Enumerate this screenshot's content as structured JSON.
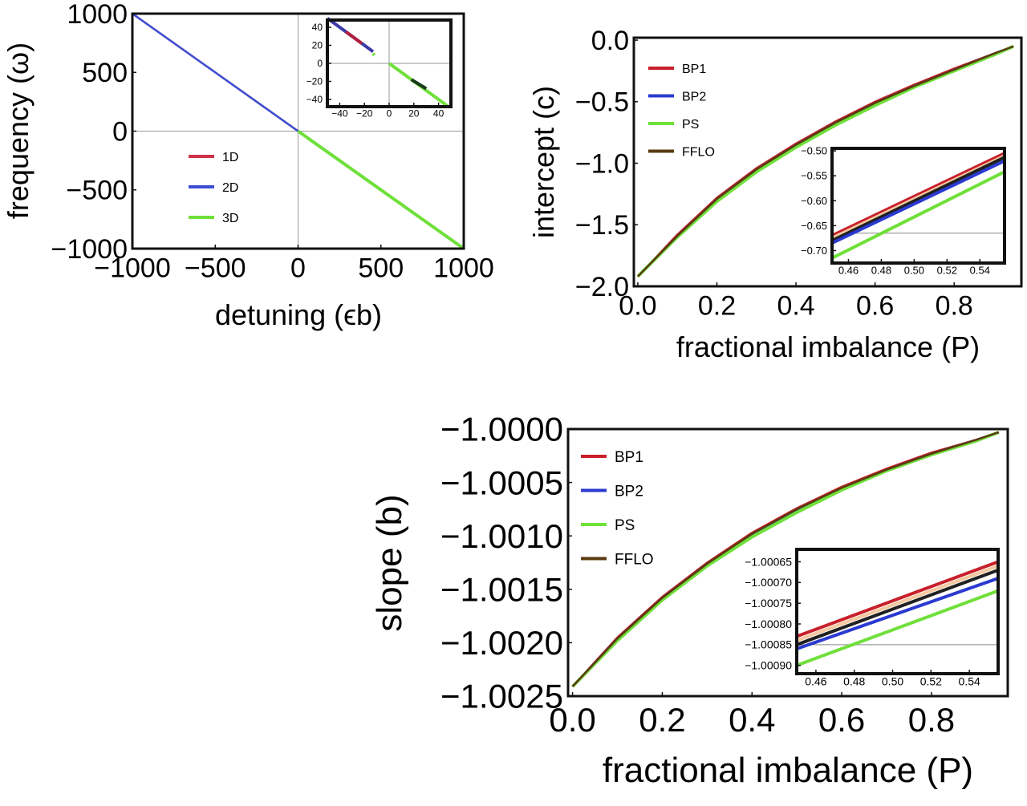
{
  "chart_data": [
    {
      "type": "line",
      "panel": "a",
      "xlabel": "detuning (ϵb)",
      "ylabel": "frequency (ω)",
      "xlim": [
        -1000,
        1000
      ],
      "ylim": [
        -1000,
        1000
      ],
      "xticks": [
        -1000,
        -500,
        0,
        500,
        1000
      ],
      "xticklabels": [
        "−1000",
        "−500",
        "0",
        "500",
        "1000"
      ],
      "yticks": [
        -1000,
        -500,
        0,
        500,
        1000
      ],
      "yticklabels": [
        "−1000",
        "−500",
        "0",
        "500",
        "1000"
      ],
      "legend_placement": "center-left",
      "zero_lines": true,
      "series": [
        {
          "name": "1D",
          "color": "#d0314a",
          "x": [
            -1000,
            0
          ],
          "y": [
            1000,
            0
          ]
        },
        {
          "name": "2D",
          "color": "#3a4fd6",
          "x": [
            -1000,
            0
          ],
          "y": [
            1000,
            0
          ]
        },
        {
          "name": "3D",
          "color": "#6fe03a",
          "x": [
            0,
            1000
          ],
          "y": [
            0,
            -1000
          ]
        }
      ],
      "inset": {
        "xlim": [
          -50,
          50
        ],
        "ylim": [
          -48,
          48
        ],
        "xticks": [
          -40,
          -20,
          0,
          20,
          40
        ],
        "xticklabels": [
          "−40",
          "−20",
          "0",
          "20",
          "40"
        ],
        "yticks": [
          -40,
          -20,
          0,
          20,
          40
        ],
        "yticklabels": [
          "−40",
          "−20",
          "0",
          "20",
          "40"
        ],
        "series": [
          {
            "color": "#3a3aa8",
            "x": [
              -50,
              -13
            ],
            "y": [
              50,
              13
            ]
          },
          {
            "color": "#b02040",
            "x": [
              -35,
              -22
            ],
            "y": [
              35,
              22
            ]
          },
          {
            "color": "#6fe03a",
            "x": [
              -13,
              -12
            ],
            "y": [
              11,
              9
            ]
          },
          {
            "color": "#6fe03a",
            "x": [
              0,
              48
            ],
            "y": [
              0,
              -48
            ]
          },
          {
            "color": "#1a3a1a",
            "x": [
              18,
              30
            ],
            "y": [
              -18,
              -28
            ]
          }
        ]
      }
    },
    {
      "type": "line",
      "panel": "b",
      "xlabel": "fractional imbalance (P)",
      "ylabel": "intercept (c)",
      "xlim": [
        -0.01,
        0.97
      ],
      "ylim": [
        -2.0,
        0.02
      ],
      "xticks": [
        0,
        0.2,
        0.4,
        0.6,
        0.8
      ],
      "xticklabels": [
        "0.0",
        "0.2",
        "0.4",
        "0.6",
        "0.8"
      ],
      "yticks": [
        -2,
        -1.5,
        -1,
        -0.5,
        0
      ],
      "yticklabels": [
        "−2.0",
        "−1.5",
        "−1.0",
        "−0.5",
        "0.0"
      ],
      "legend_placement": "top-left",
      "x": [
        0,
        0.1,
        0.2,
        0.3,
        0.4,
        0.5,
        0.6,
        0.7,
        0.8,
        0.9,
        0.95
      ],
      "series": [
        {
          "name": "BP1",
          "color": "#c8202a",
          "y": [
            -1.92,
            -1.58,
            -1.28,
            -1.04,
            -0.84,
            -0.66,
            -0.5,
            -0.36,
            -0.23,
            -0.11,
            -0.05
          ]
        },
        {
          "name": "BP2",
          "color": "#2a3ad0",
          "y": [
            -1.92,
            -1.59,
            -1.29,
            -1.05,
            -0.85,
            -0.67,
            -0.51,
            -0.37,
            -0.24,
            -0.11,
            -0.05
          ]
        },
        {
          "name": "PS",
          "color": "#6fe03a",
          "y": [
            -1.92,
            -1.6,
            -1.31,
            -1.07,
            -0.87,
            -0.69,
            -0.53,
            -0.38,
            -0.25,
            -0.12,
            -0.05
          ]
        },
        {
          "name": "FFLO",
          "color": "#5a3a10",
          "y": [
            -1.92,
            -1.59,
            -1.29,
            -1.05,
            -0.85,
            -0.67,
            -0.51,
            -0.37,
            -0.24,
            -0.11,
            -0.05
          ]
        }
      ],
      "inset": {
        "xlim": [
          0.45,
          0.555
        ],
        "ylim": [
          -0.725,
          -0.495
        ],
        "xticks": [
          0.46,
          0.48,
          0.5,
          0.52,
          0.54
        ],
        "xticklabels": [
          "0.46",
          "0.48",
          "0.50",
          "0.52",
          "0.54"
        ],
        "yticks": [
          -0.7,
          -0.65,
          -0.6,
          -0.55,
          -0.5
        ],
        "yticklabels": [
          "−0.70",
          "−0.65",
          "−0.60",
          "−0.55",
          "−0.50"
        ],
        "hline": -0.665,
        "series": [
          {
            "color": "#c8202a",
            "x": [
              0.45,
              0.555
            ],
            "y": [
              -0.67,
              -0.505
            ]
          },
          {
            "color": "#f4c8a0",
            "x": [
              0.45,
              0.555
            ],
            "y": [
              -0.675,
              -0.51
            ]
          },
          {
            "color": "#202020",
            "x": [
              0.45,
              0.555
            ],
            "y": [
              -0.68,
              -0.513
            ]
          },
          {
            "color": "#2a3ad0",
            "x": [
              0.45,
              0.555
            ],
            "y": [
              -0.685,
              -0.52
            ]
          },
          {
            "color": "#6fe03a",
            "x": [
              0.45,
              0.555
            ],
            "y": [
              -0.715,
              -0.542
            ]
          }
        ]
      }
    },
    {
      "type": "line",
      "panel": "c",
      "xlabel": "fractional imbalance (P)",
      "ylabel": "slope (b)",
      "xlim": [
        -0.01,
        0.97
      ],
      "ylim": [
        -1.0025,
        -1.0
      ],
      "xticks": [
        0,
        0.2,
        0.4,
        0.6,
        0.8
      ],
      "xticklabels": [
        "0.0",
        "0.2",
        "0.4",
        "0.6",
        "0.8"
      ],
      "yticks": [
        -1.0025,
        -1.002,
        -1.0015,
        -1.001,
        -1.0005,
        -1.0
      ],
      "yticklabels": [
        "−1.0025",
        "−1.0020",
        "−1.0015",
        "−1.0010",
        "−1.0005",
        "−1.0000"
      ],
      "legend_placement": "top-left",
      "x": [
        0,
        0.1,
        0.2,
        0.3,
        0.4,
        0.5,
        0.6,
        0.7,
        0.8,
        0.9,
        0.95
      ],
      "series": [
        {
          "name": "BP1",
          "color": "#c8202a",
          "y": [
            -1.00241,
            -1.00195,
            -1.00157,
            -1.00125,
            -1.00097,
            -1.00074,
            -1.00054,
            -1.00037,
            -1.00022,
            -1.0001,
            -1.00003
          ]
        },
        {
          "name": "BP2",
          "color": "#2a3ad0",
          "y": [
            -1.00241,
            -1.00196,
            -1.00158,
            -1.00126,
            -1.00099,
            -1.00076,
            -1.00056,
            -1.00038,
            -1.00023,
            -1.0001,
            -1.00003
          ]
        },
        {
          "name": "PS",
          "color": "#6fe03a",
          "y": [
            -1.00241,
            -1.00198,
            -1.0016,
            -1.00128,
            -1.00101,
            -1.00078,
            -1.00057,
            -1.00039,
            -1.00024,
            -1.00011,
            -1.00003
          ]
        },
        {
          "name": "FFLO",
          "color": "#5a3a10",
          "y": [
            -1.00241,
            -1.00196,
            -1.00158,
            -1.00126,
            -1.00098,
            -1.00075,
            -1.00055,
            -1.00038,
            -1.00023,
            -1.0001,
            -1.00003
          ]
        }
      ],
      "inset": {
        "xlim": [
          0.45,
          0.555
        ],
        "ylim": [
          -1.00092,
          -1.00062
        ],
        "xticks": [
          0.46,
          0.48,
          0.5,
          0.52,
          0.54
        ],
        "xticklabels": [
          "0.46",
          "0.48",
          "0.50",
          "0.52",
          "0.54"
        ],
        "yticks": [
          -1.0009,
          -1.00085,
          -1.0008,
          -1.00075,
          -1.0007,
          -1.00065
        ],
        "yticklabels": [
          "−1.00090",
          "−1.00085",
          "−1.00080",
          "−1.00075",
          "−1.00070",
          "−1.00065"
        ],
        "hline": -1.00085,
        "series": [
          {
            "color": "#c8202a",
            "x": [
              0.45,
              0.555
            ],
            "y": [
              -1.00083,
              -1.00065
            ]
          },
          {
            "color": "#f4c8a0",
            "x": [
              0.45,
              0.555
            ],
            "y": [
              -1.00084,
              -1.00066
            ]
          },
          {
            "color": "#202020",
            "x": [
              0.45,
              0.555
            ],
            "y": [
              -1.00085,
              -1.00067
            ]
          },
          {
            "color": "#2a3ad0",
            "x": [
              0.45,
              0.555
            ],
            "y": [
              -1.00086,
              -1.00069
            ]
          },
          {
            "color": "#6fe03a",
            "x": [
              0.45,
              0.555
            ],
            "y": [
              -1.0009,
              -1.00072
            ]
          }
        ]
      }
    }
  ]
}
